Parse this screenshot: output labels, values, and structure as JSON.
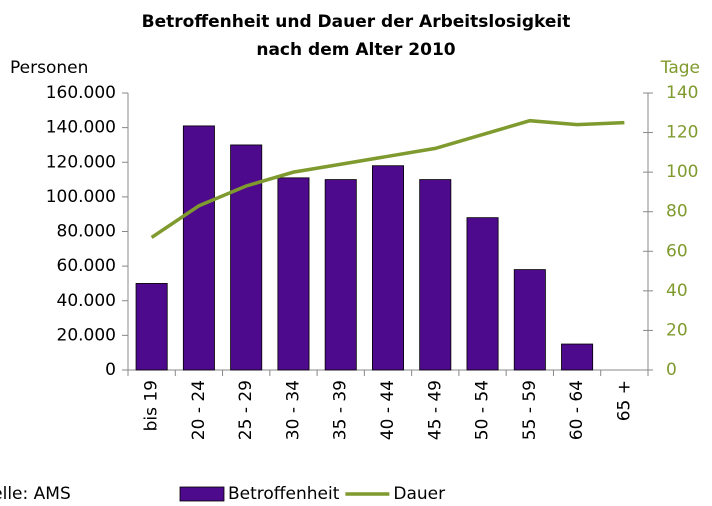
{
  "chart_data": {
    "type": "bar",
    "title": [
      "Betroffenheit und Dauer der Arbeitslosigkeit",
      "nach dem Alter 2010"
    ],
    "y_label": "Personen",
    "y2_label": "Tage",
    "source": "Quelle: AMS",
    "categories": [
      "bis 19",
      "20 - 24",
      "25 - 29",
      "30 - 34",
      "35 - 39",
      "40 - 44",
      "45 - 49",
      "50 - 54",
      "55 - 59",
      "60 - 64",
      "65 +"
    ],
    "series": [
      {
        "name": "Betroffenheit",
        "type": "bar",
        "color": "#4e0a8c",
        "values": [
          50000,
          141000,
          130000,
          111000,
          110000,
          118000,
          110000,
          88000,
          58000,
          15000,
          0
        ]
      },
      {
        "name": "Dauer",
        "type": "line",
        "axis": "y2",
        "color": "#7f9a2e",
        "values": [
          67,
          83,
          93,
          100,
          104,
          108,
          112,
          119,
          126,
          124,
          125
        ]
      }
    ],
    "ylim": [
      0,
      160000
    ],
    "yticks": [
      0,
      {
        "value": 20000,
        "label": "20.000"
      },
      {
        "value": 40000,
        "label": "40.000"
      },
      {
        "value": 60000,
        "label": "60.000"
      },
      {
        "value": 80000,
        "label": "80.000"
      },
      {
        "value": 100000,
        "label": "100.000"
      },
      {
        "value": 120000,
        "label": "120.000"
      },
      {
        "value": 140000,
        "label": "140.000"
      },
      {
        "value": 160000,
        "label": "160.000"
      }
    ],
    "y2lim": [
      0,
      140
    ],
    "y2ticks": [
      0,
      20,
      40,
      60,
      80,
      100,
      120,
      140
    ],
    "grid": false,
    "legend": "bottom"
  }
}
